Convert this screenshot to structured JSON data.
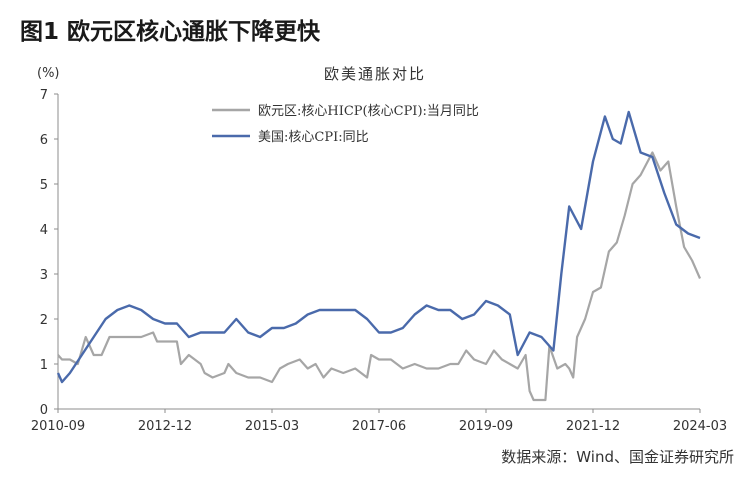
{
  "figure_title": "图1  欧元区核心通胀下降更快",
  "source": "数据来源：Wind、国金证券研究所",
  "chart_data": {
    "type": "line",
    "title": "欧美通胀对比",
    "y_unit": "(%)",
    "ylim": [
      0,
      7
    ],
    "y_ticks": [
      "0",
      "1",
      "2",
      "3",
      "4",
      "5",
      "6",
      "7"
    ],
    "x_ticks": [
      "2010-09",
      "2012-12",
      "2015-03",
      "2017-06",
      "2019-09",
      "2021-12",
      "2024-03"
    ],
    "legend_position": "top-left",
    "grid": false,
    "series": [
      {
        "name": "欧元区:核心HICP(核心CPI):当月同比",
        "color": "#a6a6a6",
        "points": [
          [
            "2010-09",
            1.2
          ],
          [
            "2010-10",
            1.1
          ],
          [
            "2010-11",
            1.1
          ],
          [
            "2010-12",
            1.1
          ],
          [
            "2011-02",
            1.0
          ],
          [
            "2011-04",
            1.6
          ],
          [
            "2011-06",
            1.2
          ],
          [
            "2011-08",
            1.2
          ],
          [
            "2011-10",
            1.6
          ],
          [
            "2011-12",
            1.6
          ],
          [
            "2012-03",
            1.6
          ],
          [
            "2012-06",
            1.6
          ],
          [
            "2012-09",
            1.7
          ],
          [
            "2012-10",
            1.5
          ],
          [
            "2013-01",
            1.5
          ],
          [
            "2013-03",
            1.5
          ],
          [
            "2013-04",
            1.0
          ],
          [
            "2013-06",
            1.2
          ],
          [
            "2013-09",
            1.0
          ],
          [
            "2013-10",
            0.8
          ],
          [
            "2013-12",
            0.7
          ],
          [
            "2014-03",
            0.8
          ],
          [
            "2014-04",
            1.0
          ],
          [
            "2014-06",
            0.8
          ],
          [
            "2014-09",
            0.7
          ],
          [
            "2014-12",
            0.7
          ],
          [
            "2015-03",
            0.6
          ],
          [
            "2015-05",
            0.9
          ],
          [
            "2015-07",
            1.0
          ],
          [
            "2015-10",
            1.1
          ],
          [
            "2015-12",
            0.9
          ],
          [
            "2016-02",
            1.0
          ],
          [
            "2016-04",
            0.7
          ],
          [
            "2016-06",
            0.9
          ],
          [
            "2016-09",
            0.8
          ],
          [
            "2016-12",
            0.9
          ],
          [
            "2017-03",
            0.7
          ],
          [
            "2017-04",
            1.2
          ],
          [
            "2017-06",
            1.1
          ],
          [
            "2017-09",
            1.1
          ],
          [
            "2017-12",
            0.9
          ],
          [
            "2018-03",
            1.0
          ],
          [
            "2018-06",
            0.9
          ],
          [
            "2018-09",
            0.9
          ],
          [
            "2018-12",
            1.0
          ],
          [
            "2019-02",
            1.0
          ],
          [
            "2019-04",
            1.3
          ],
          [
            "2019-06",
            1.1
          ],
          [
            "2019-09",
            1.0
          ],
          [
            "2019-11",
            1.3
          ],
          [
            "2020-01",
            1.1
          ],
          [
            "2020-03",
            1.0
          ],
          [
            "2020-05",
            0.9
          ],
          [
            "2020-07",
            1.2
          ],
          [
            "2020-08",
            0.4
          ],
          [
            "2020-09",
            0.2
          ],
          [
            "2020-12",
            0.2
          ],
          [
            "2021-01",
            1.4
          ],
          [
            "2021-03",
            0.9
          ],
          [
            "2021-05",
            1.0
          ],
          [
            "2021-06",
            0.9
          ],
          [
            "2021-07",
            0.7
          ],
          [
            "2021-08",
            1.6
          ],
          [
            "2021-10",
            2.0
          ],
          [
            "2021-12",
            2.6
          ],
          [
            "2022-02",
            2.7
          ],
          [
            "2022-04",
            3.5
          ],
          [
            "2022-06",
            3.7
          ],
          [
            "2022-08",
            4.3
          ],
          [
            "2022-10",
            5.0
          ],
          [
            "2022-12",
            5.2
          ],
          [
            "2023-03",
            5.7
          ],
          [
            "2023-05",
            5.3
          ],
          [
            "2023-07",
            5.5
          ],
          [
            "2023-09",
            4.5
          ],
          [
            "2023-11",
            3.6
          ],
          [
            "2024-01",
            3.3
          ],
          [
            "2024-03",
            2.9
          ]
        ]
      },
      {
        "name": "美国:核心CPI:同比",
        "color": "#4a6aab",
        "points": [
          [
            "2010-09",
            0.8
          ],
          [
            "2010-10",
            0.6
          ],
          [
            "2010-12",
            0.8
          ],
          [
            "2011-03",
            1.2
          ],
          [
            "2011-06",
            1.6
          ],
          [
            "2011-09",
            2.0
          ],
          [
            "2011-12",
            2.2
          ],
          [
            "2012-03",
            2.3
          ],
          [
            "2012-06",
            2.2
          ],
          [
            "2012-09",
            2.0
          ],
          [
            "2012-12",
            1.9
          ],
          [
            "2013-03",
            1.9
          ],
          [
            "2013-06",
            1.6
          ],
          [
            "2013-09",
            1.7
          ],
          [
            "2013-12",
            1.7
          ],
          [
            "2014-03",
            1.7
          ],
          [
            "2014-06",
            2.0
          ],
          [
            "2014-09",
            1.7
          ],
          [
            "2014-12",
            1.6
          ],
          [
            "2015-03",
            1.8
          ],
          [
            "2015-06",
            1.8
          ],
          [
            "2015-09",
            1.9
          ],
          [
            "2015-12",
            2.1
          ],
          [
            "2016-03",
            2.2
          ],
          [
            "2016-06",
            2.2
          ],
          [
            "2016-09",
            2.2
          ],
          [
            "2016-12",
            2.2
          ],
          [
            "2017-03",
            2.0
          ],
          [
            "2017-06",
            1.7
          ],
          [
            "2017-09",
            1.7
          ],
          [
            "2017-12",
            1.8
          ],
          [
            "2018-03",
            2.1
          ],
          [
            "2018-06",
            2.3
          ],
          [
            "2018-09",
            2.2
          ],
          [
            "2018-12",
            2.2
          ],
          [
            "2019-03",
            2.0
          ],
          [
            "2019-06",
            2.1
          ],
          [
            "2019-09",
            2.4
          ],
          [
            "2019-12",
            2.3
          ],
          [
            "2020-03",
            2.1
          ],
          [
            "2020-05",
            1.2
          ],
          [
            "2020-08",
            1.7
          ],
          [
            "2020-11",
            1.6
          ],
          [
            "2021-02",
            1.3
          ],
          [
            "2021-04",
            3.0
          ],
          [
            "2021-06",
            4.5
          ],
          [
            "2021-09",
            4.0
          ],
          [
            "2021-12",
            5.5
          ],
          [
            "2022-03",
            6.5
          ],
          [
            "2022-05",
            6.0
          ],
          [
            "2022-07",
            5.9
          ],
          [
            "2022-09",
            6.6
          ],
          [
            "2022-12",
            5.7
          ],
          [
            "2023-03",
            5.6
          ],
          [
            "2023-06",
            4.8
          ],
          [
            "2023-09",
            4.1
          ],
          [
            "2023-12",
            3.9
          ],
          [
            "2024-03",
            3.8
          ]
        ]
      }
    ]
  }
}
